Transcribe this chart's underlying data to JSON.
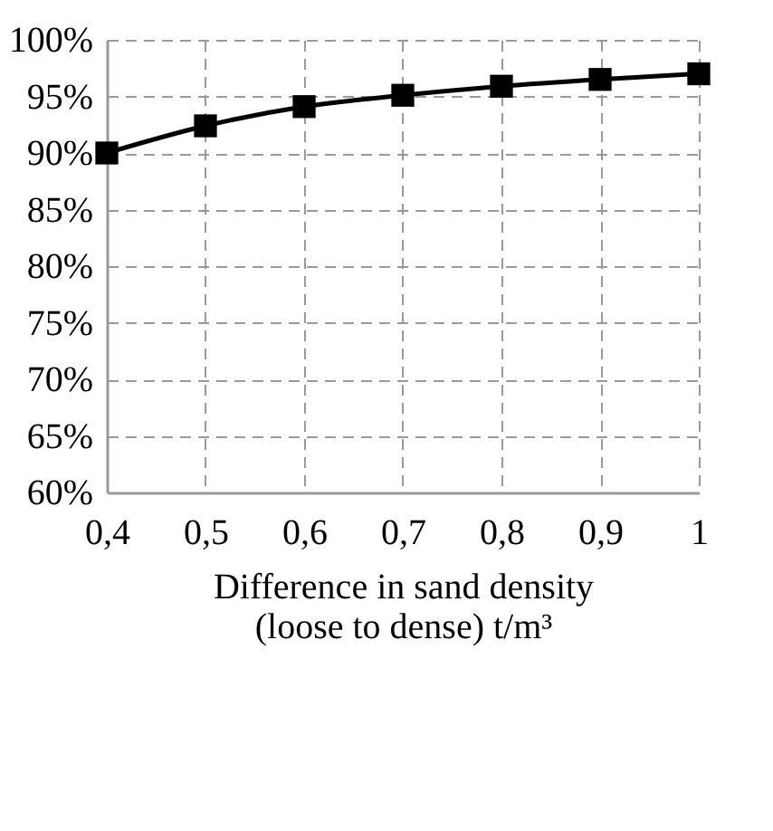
{
  "chart_data": {
    "type": "line",
    "xlabel": "Difference in sand density\n(loose to dense) t/m³",
    "x": [
      0.4,
      0.5,
      0.6,
      0.7,
      0.8,
      0.9,
      1.0
    ],
    "series": [
      {
        "color": "#000000",
        "values": [
          90.0,
          92.4,
          94.1,
          95.1,
          95.9,
          96.5,
          97.0
        ]
      }
    ],
    "xlim": [
      0.4,
      1.0
    ],
    "xticks": [
      {
        "value": 0.4,
        "label": "0,4"
      },
      {
        "value": 0.5,
        "label": "0,5"
      },
      {
        "value": 0.6,
        "label": "0,6"
      },
      {
        "value": 0.7,
        "label": "0,7"
      },
      {
        "value": 0.8,
        "label": "0,8"
      },
      {
        "value": 0.9,
        "label": "0,9"
      },
      1
    ],
    "ylim": [
      60,
      100
    ],
    "yticks": [
      {
        "value": 60,
        "label": "60%"
      },
      {
        "value": 65,
        "label": "65%"
      },
      {
        "value": 70,
        "label": "70%"
      },
      {
        "value": 75,
        "label": "75%"
      },
      {
        "value": 80,
        "label": "80%"
      },
      {
        "value": 85,
        "label": "85%"
      },
      {
        "value": 90,
        "label": "90%"
      },
      {
        "value": 95,
        "label": "95%"
      },
      {
        "value": 100,
        "label": "100%"
      }
    ],
    "grid": true,
    "marker": "square",
    "line_style": "solid",
    "legend": false
  }
}
